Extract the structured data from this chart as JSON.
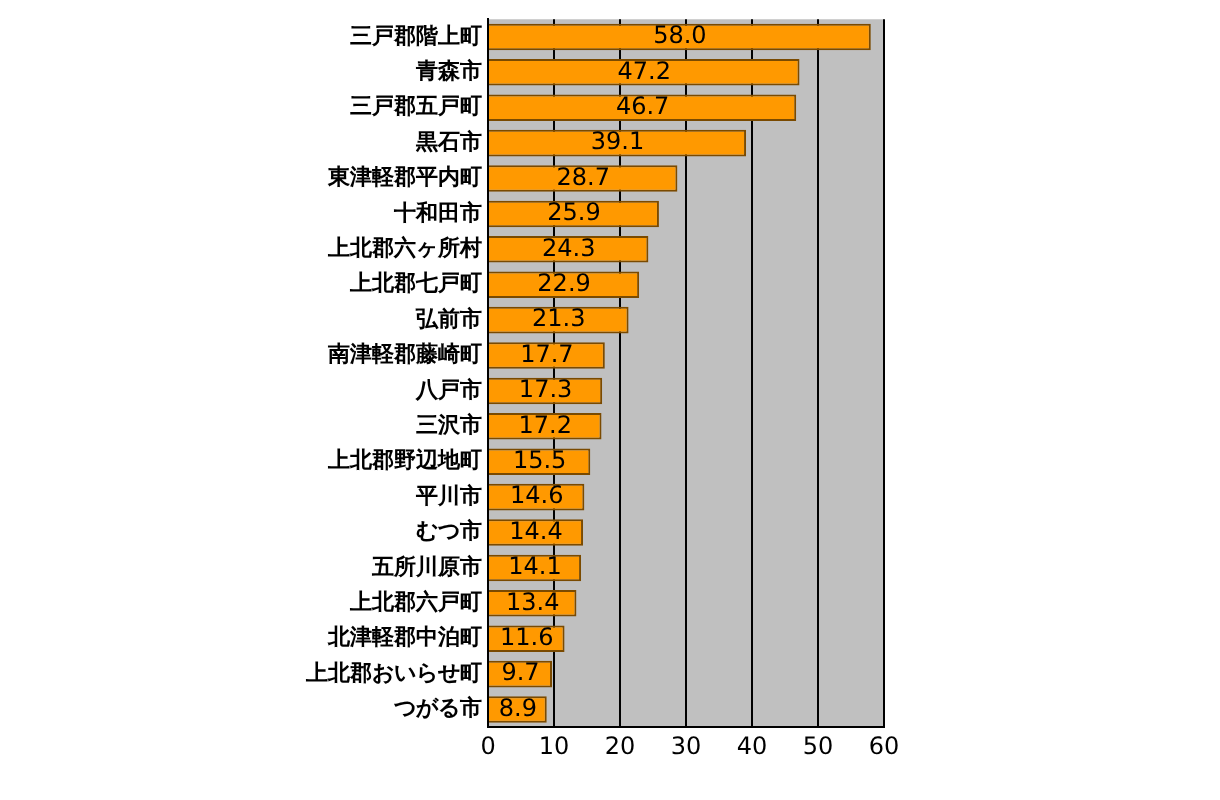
{
  "chart_data": {
    "type": "bar",
    "orientation": "horizontal",
    "categories": [
      "三戸郡階上町",
      "青森市",
      "三戸郡五戸町",
      "黒石市",
      "東津軽郡平内町",
      "十和田市",
      "上北郡六ヶ所村",
      "上北郡七戸町",
      "弘前市",
      "南津軽郡藤崎町",
      "八戸市",
      "三沢市",
      "上北郡野辺地町",
      "平川市",
      "むつ市",
      "五所川原市",
      "上北郡六戸町",
      "北津軽郡中泊町",
      "上北郡おいらせ町",
      "つがる市"
    ],
    "values": [
      58.0,
      47.2,
      46.7,
      39.1,
      28.7,
      25.9,
      24.3,
      22.9,
      21.3,
      17.7,
      17.3,
      17.2,
      15.5,
      14.6,
      14.4,
      14.1,
      13.4,
      11.6,
      9.7,
      8.9
    ],
    "value_labels": [
      "58.0",
      "47.2",
      "46.7",
      "39.1",
      "28.7",
      "25.9",
      "24.3",
      "22.9",
      "21.3",
      "17.7",
      "17.3",
      "17.2",
      "15.5",
      "14.6",
      "14.4",
      "14.1",
      "13.4",
      "11.6",
      "9.7",
      "8.9"
    ],
    "color": "#ff9900",
    "xlim": [
      0,
      60
    ],
    "xticks": [
      0,
      10,
      20,
      30,
      40,
      50,
      60
    ],
    "grid": "x",
    "legend": false
  }
}
